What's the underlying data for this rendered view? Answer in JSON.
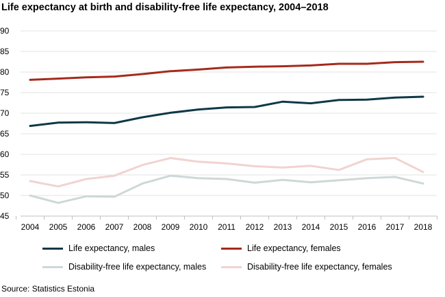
{
  "chart_data": {
    "type": "line",
    "title": "Life expectancy at birth and disability-free life expectancy, 2004–2018",
    "source": "Source: Statistics Estonia",
    "xlabel": "",
    "ylabel": "",
    "x": [
      "2004",
      "2005",
      "2006",
      "2007",
      "2008",
      "2009",
      "2010",
      "2011",
      "2012",
      "2013",
      "2014",
      "2015",
      "2016",
      "2017",
      "2018"
    ],
    "ylim": [
      45,
      90
    ],
    "yticks": [
      45,
      50,
      55,
      60,
      65,
      70,
      75,
      80,
      85,
      90
    ],
    "grid": true,
    "legend_position": "bottom",
    "series": [
      {
        "name": "Life expectancy, males",
        "color": "#0f3846",
        "values": [
          66.9,
          67.7,
          67.8,
          67.6,
          69.0,
          70.1,
          70.9,
          71.4,
          71.5,
          72.8,
          72.4,
          73.2,
          73.3,
          73.8,
          74.0
        ]
      },
      {
        "name": "Life expectancy, females",
        "color": "#a52a1c",
        "values": [
          78.1,
          78.4,
          78.7,
          78.9,
          79.5,
          80.2,
          80.6,
          81.1,
          81.3,
          81.4,
          81.6,
          82.0,
          82.0,
          82.4,
          82.5
        ]
      },
      {
        "name": "Disability-free life expectancy, males",
        "color": "#cdd8d8",
        "values": [
          50.0,
          48.2,
          49.8,
          49.7,
          52.9,
          54.8,
          54.2,
          54.0,
          53.1,
          53.8,
          53.2,
          53.7,
          54.2,
          54.5,
          52.9
        ]
      },
      {
        "name": "Disability-free life expectancy, females",
        "color": "#f1d3d0",
        "values": [
          53.5,
          52.2,
          54.0,
          54.8,
          57.4,
          59.1,
          58.2,
          57.8,
          57.1,
          56.8,
          57.2,
          56.2,
          58.8,
          59.1,
          55.7
        ]
      }
    ]
  }
}
